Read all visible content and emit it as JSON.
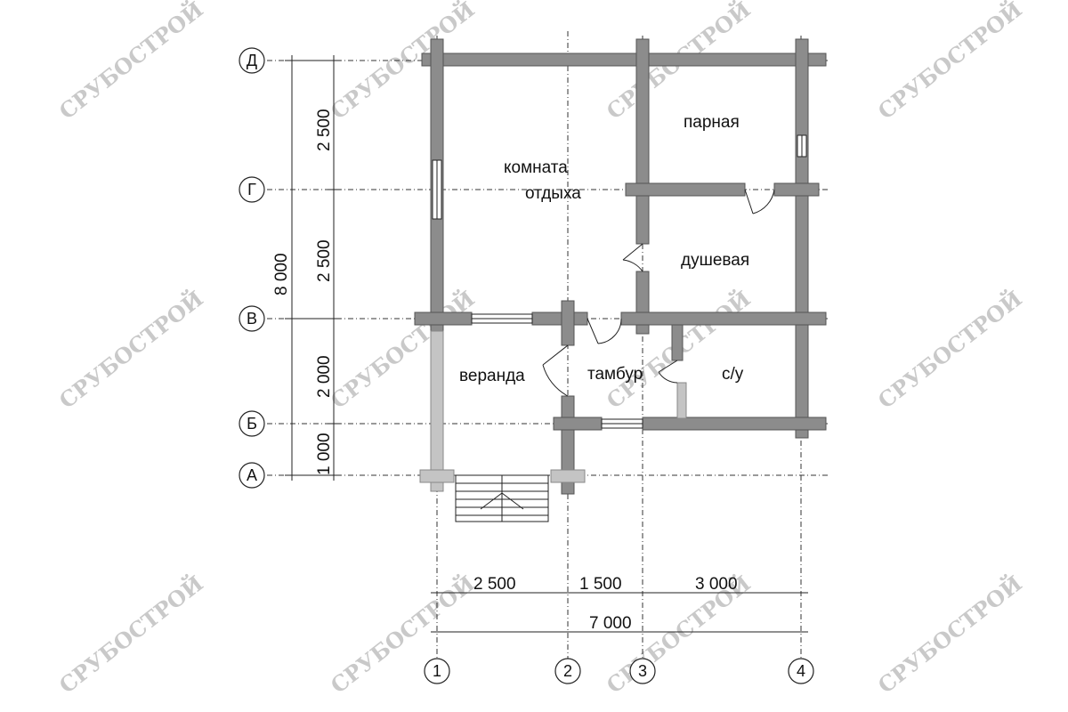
{
  "watermark": {
    "text": "СРУБОСТРОЙ",
    "color": "#c9c9c9"
  },
  "rooms": {
    "rest_room_line1": "комната",
    "rest_room_line2": "отдыха",
    "steam_room": "парная",
    "shower": "душевая",
    "veranda": "веранда",
    "vestibule": "тамбур",
    "wc": "с/у"
  },
  "axes": {
    "rows": [
      "Д",
      "Г",
      "В",
      "Б",
      "А"
    ],
    "columns": [
      "1",
      "2",
      "3",
      "4"
    ]
  },
  "dimensions": {
    "vertical_total": "8 000",
    "vertical_segments": [
      "2 500",
      "2 500",
      "2 000",
      "1 000"
    ],
    "horizontal_segments": [
      "2 500",
      "1 500",
      "3 000"
    ],
    "horizontal_total": "7 000"
  },
  "colors": {
    "wall": "#8c8c8c",
    "wall_light": "#c4c4c4",
    "line": "#333333"
  }
}
